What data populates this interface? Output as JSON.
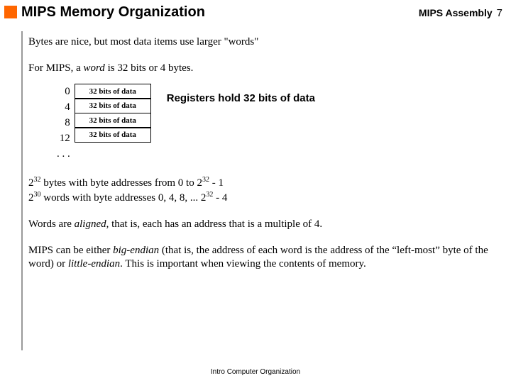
{
  "header": {
    "accent_color": "#ff6600",
    "title": "MIPS Memory Organization",
    "course": "MIPS Assembly",
    "page_num": "7"
  },
  "body": {
    "line1": "Bytes are nice, but most data items use larger \"words\"",
    "line2_a": "For MIPS, a ",
    "line2_b": "word",
    "line2_c": " is 32 bits or 4 bytes.",
    "mem": {
      "addrs": [
        "0",
        "4",
        "8",
        "12",
        ". . ."
      ],
      "cell_label": "32 bits of data",
      "note": "Registers hold 32 bits of data"
    },
    "math": {
      "l1_a": "2",
      "l1_b": "32",
      "l1_c": " bytes with byte addresses from 0 to 2",
      "l1_d": "32",
      "l1_e": " - 1",
      "l2_a": "2",
      "l2_b": "30",
      "l2_c": " words with byte addresses 0, 4, 8, ... 2",
      "l2_d": "32",
      "l2_e": " - 4"
    },
    "line3_a": "Words are ",
    "line3_b": "aligned",
    "line3_c": ", that is, each has an address that is a multiple of 4.",
    "line4_a": "MIPS can be either ",
    "line4_b": "big-endian",
    "line4_c": " (that is, the address of each word is the address of the “left-most” byte of the word) or ",
    "line4_d": "little-endian",
    "line4_e": ".  This is important when viewing the contents of memory."
  },
  "footer": "Intro Computer Organization"
}
